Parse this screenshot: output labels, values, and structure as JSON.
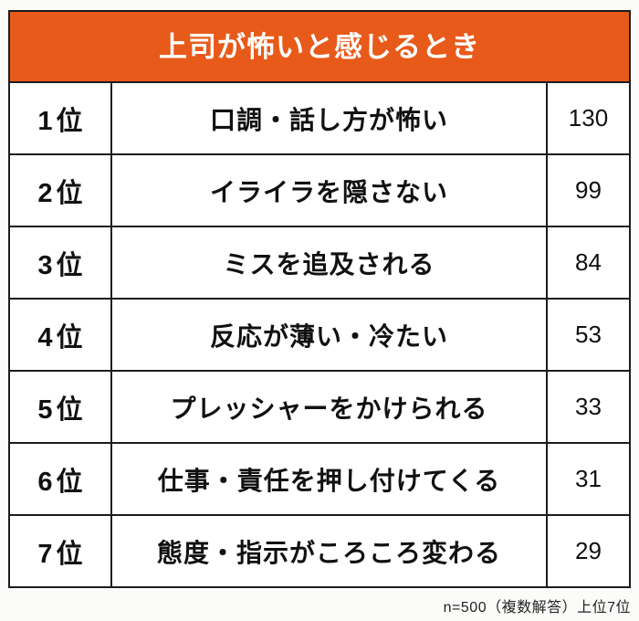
{
  "title": "上司が怖いと感じるとき",
  "footnote": "n=500（複数解答）上位7位",
  "colors": {
    "accent": "#E85A1A",
    "border": "#1C1C1C",
    "text": "#111111",
    "title_text": "#FFFFFF",
    "background": "#FBFBF9"
  },
  "chart_data": {
    "type": "table",
    "title": "上司が怖いと感じるとき",
    "note": "n=500（複数解答）上位7位",
    "rows": [
      {
        "rank": "1位",
        "label": "口調・話し方が怖い",
        "value": 130
      },
      {
        "rank": "2位",
        "label": "イライラを隠さない",
        "value": 99
      },
      {
        "rank": "3位",
        "label": "ミスを追及される",
        "value": 84
      },
      {
        "rank": "4位",
        "label": "反応が薄い・冷たい",
        "value": 53
      },
      {
        "rank": "5位",
        "label": "プレッシャーをかけられる",
        "value": 33
      },
      {
        "rank": "6位",
        "label": "仕事・責任を押し付けてくる",
        "value": 31
      },
      {
        "rank": "7位",
        "label": "態度・指示がころころ変わる",
        "value": 29
      }
    ]
  }
}
